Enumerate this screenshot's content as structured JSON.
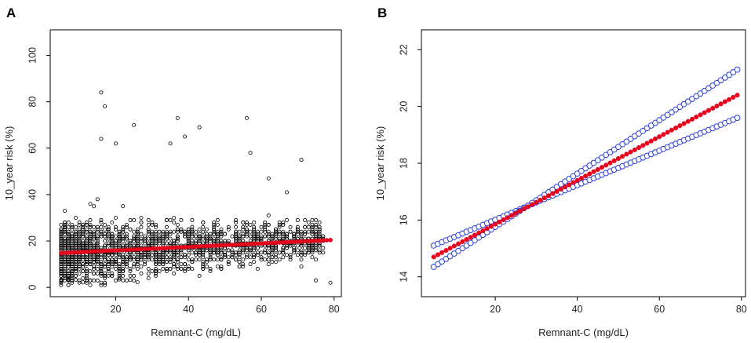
{
  "colors": {
    "scatter": "#000000",
    "fit": "#e8001c",
    "ci": "#2a3fd6",
    "axis": "#000000"
  },
  "chart_data": [
    {
      "panel": "A",
      "type": "scatter",
      "xlabel": "Remnant-C (mg/dL)",
      "ylabel": "10_year risk (%)",
      "xlim": [
        2,
        82
      ],
      "ylim": [
        -4,
        111
      ],
      "xticks": [
        20,
        40,
        60,
        80
      ],
      "yticks": [
        0,
        20,
        40,
        60,
        80,
        100
      ],
      "grid": false,
      "scatter_series": {
        "marker": "open-circle",
        "note_points": "dense cloud of observations; outliers listed explicitly",
        "outliers": [
          [
            16,
            84
          ],
          [
            17,
            78
          ],
          [
            25,
            70
          ],
          [
            37,
            73
          ],
          [
            43,
            69
          ],
          [
            56,
            73
          ],
          [
            39,
            65
          ],
          [
            16,
            64
          ],
          [
            20,
            62
          ],
          [
            35,
            62
          ],
          [
            71,
            55
          ],
          [
            57,
            58
          ],
          [
            62,
            47
          ],
          [
            67,
            41
          ],
          [
            74,
            27
          ],
          [
            76,
            28
          ],
          [
            79,
            2
          ],
          [
            75,
            3
          ]
        ]
      },
      "series": [
        {
          "marker": "filled-circle",
          "x_start": 5,
          "x_end": 79,
          "x_step": 1,
          "y_start": 14.8,
          "y_end": 20.4
        }
      ]
    },
    {
      "panel": "B",
      "type": "line",
      "xlabel": "Remnant-C (mg/dL)",
      "ylabel": "10_year risk (%)",
      "xlim": [
        2,
        81
      ],
      "ylim": [
        13.3,
        22.7
      ],
      "xticks": [
        20,
        40,
        60,
        80
      ],
      "yticks": [
        14,
        16,
        18,
        20,
        22
      ],
      "grid": false,
      "series": [
        {
          "marker": "open-circle",
          "x_start": 5,
          "x_end": 79,
          "x_step": 1,
          "y_start": 15.1,
          "y_end": 19.6
        },
        {
          "marker": "filled-circle",
          "x_start": 5,
          "x_end": 79,
          "x_step": 1,
          "y_start": 14.7,
          "y_end": 20.4
        },
        {
          "marker": "open-circle",
          "x_start": 5,
          "x_end": 79,
          "x_step": 1,
          "y_start": 14.35,
          "y_end": 21.3
        }
      ]
    }
  ]
}
